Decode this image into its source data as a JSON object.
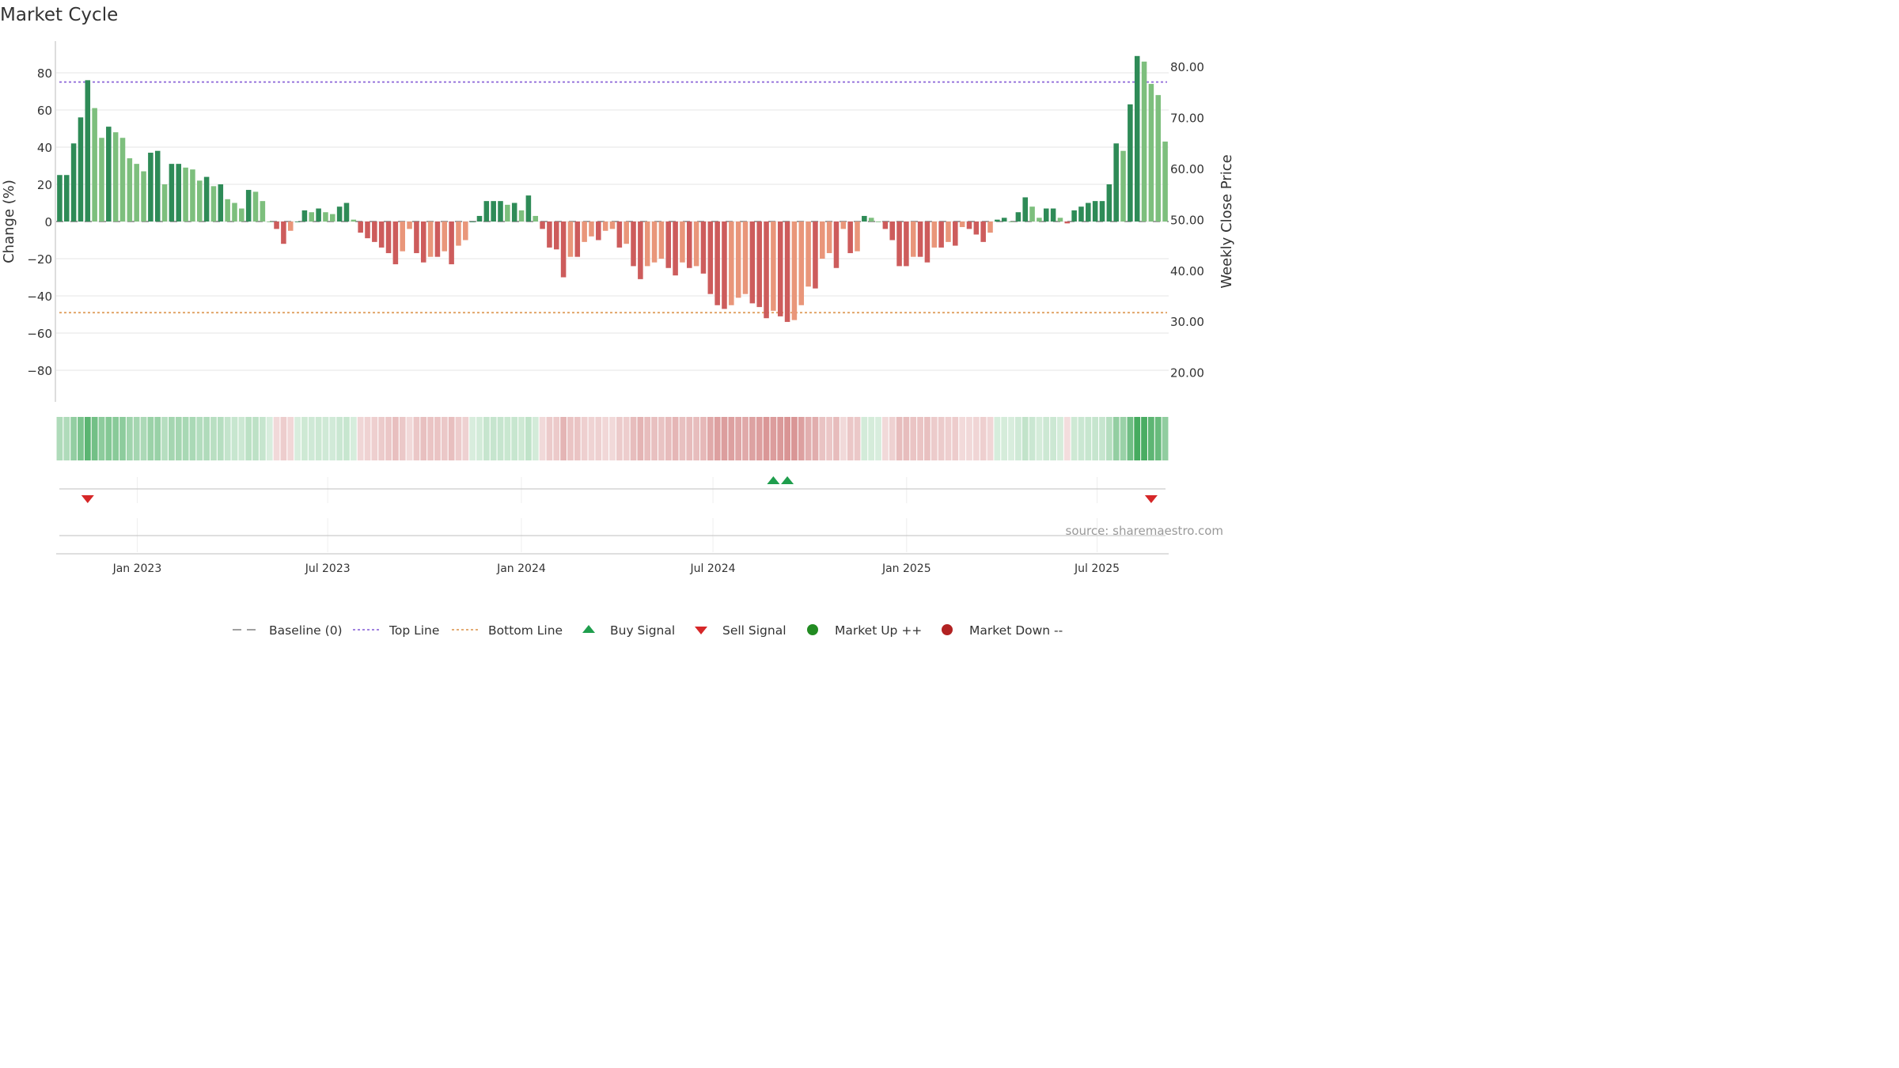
{
  "chart_data": {
    "type": "bar",
    "title": "Market Cycle",
    "ylabel": "Change (%)",
    "ylabel_right": "Weekly Close Price",
    "ylim": [
      -97,
      97
    ],
    "yticks": [
      80,
      60,
      40,
      20,
      0,
      -20,
      -40,
      -60,
      -80
    ],
    "ytick_labels": [
      "80",
      "60",
      "40",
      "20",
      "0",
      "−20",
      "−40",
      "−60",
      "−80"
    ],
    "ylim_right": [
      14.2,
      85.0
    ],
    "yticks_right": [
      80,
      70,
      60,
      50,
      40,
      30,
      20
    ],
    "ytick_right_labels": [
      "80.00",
      "70.00",
      "60.00",
      "50.00",
      "40.00",
      "30.00",
      "20.00"
    ],
    "date_range": [
      "2022-10-16",
      "2025-09-07"
    ],
    "x_ticks": [
      {
        "date": "2023-01-01",
        "label": "Jan 2023"
      },
      {
        "date": "2023-07-01",
        "label": "Jul 2023"
      },
      {
        "date": "2024-01-01",
        "label": "Jan 2024"
      },
      {
        "date": "2024-07-01",
        "label": "Jul 2024"
      },
      {
        "date": "2025-01-01",
        "label": "Jan 2025"
      },
      {
        "date": "2025-07-01",
        "label": "Jul 2025"
      }
    ],
    "grid": true,
    "top_line": 75,
    "bottom_line": -49,
    "baseline": 0,
    "values": [
      25,
      25,
      42,
      56,
      76,
      61,
      45,
      51,
      48,
      45,
      34,
      31,
      27,
      37,
      38,
      20,
      31,
      31,
      29,
      28,
      22,
      24,
      19,
      20,
      12,
      10,
      7,
      17,
      16,
      11,
      0,
      -4,
      -12,
      -5,
      0,
      6,
      5,
      7,
      5,
      4,
      8,
      10,
      1,
      -6,
      -9,
      -11,
      -14,
      -17,
      -23,
      -16,
      -4,
      -17,
      -22,
      -19,
      -19,
      -16,
      -23,
      -13,
      -10,
      0,
      3,
      11,
      11,
      11,
      9,
      10,
      6,
      14,
      3,
      -4,
      -14,
      -15,
      -30,
      -19,
      -19,
      -11,
      -8,
      -10,
      -5,
      -4,
      -14,
      -12,
      -24,
      -31,
      -24,
      -22,
      -20,
      -25,
      -29,
      -22,
      -25,
      -24,
      -28,
      -39,
      -45,
      -47,
      -45,
      -41,
      -39,
      -44,
      -46,
      -52,
      -48,
      -51,
      -54,
      -53,
      -45,
      -35,
      -36,
      -20,
      -17,
      -25,
      -4,
      -17,
      -16,
      3,
      2,
      0,
      -4,
      -10,
      -24,
      -24,
      -19,
      -19,
      -22,
      -14,
      -14,
      -11,
      -13,
      -3,
      -4,
      -7,
      -11,
      -6,
      1,
      2,
      0,
      5,
      13,
      8,
      2,
      7,
      7,
      2,
      -1,
      6,
      8,
      10,
      11,
      11,
      20,
      42,
      38,
      63,
      89,
      86,
      74,
      68,
      43
    ],
    "bar_colors": {
      "up_dark": "#2e8b57",
      "up_light": "#7dbf7d",
      "down_dark": "#cd5c5c",
      "down_light": "#e9967a"
    },
    "heat_colors": {
      "up": "#3aa655",
      "down": "#c45b5b"
    },
    "series_colors": {
      "baseline": "#808080",
      "top_line": "#9370db",
      "bottom_line": "#e0a060",
      "buy": "#1f9e4d",
      "sell": "#d62728",
      "market_up": "#228b22",
      "market_down": "#b22222"
    },
    "buy_signals_index": [
      102,
      104
    ],
    "sell_signals_index": [
      4,
      156
    ],
    "legend": {
      "position": "bottom-center",
      "items": [
        {
          "label": "Baseline (0)",
          "symbol": "dash",
          "color": "#808080"
        },
        {
          "label": "Top Line",
          "symbol": "dot",
          "color": "#9370db"
        },
        {
          "label": "Bottom Line",
          "symbol": "dot",
          "color": "#e0a060"
        },
        {
          "label": "Buy Signal",
          "symbol": "triangle-up",
          "color": "#1f9e4d"
        },
        {
          "label": "Sell Signal",
          "symbol": "triangle-down",
          "color": "#d62728"
        },
        {
          "label": "Market Up ++",
          "symbol": "circle",
          "color": "#228b22"
        },
        {
          "label": "Market Down --",
          "symbol": "circle",
          "color": "#b22222"
        }
      ]
    },
    "source": "source: sharemaestro.com"
  }
}
